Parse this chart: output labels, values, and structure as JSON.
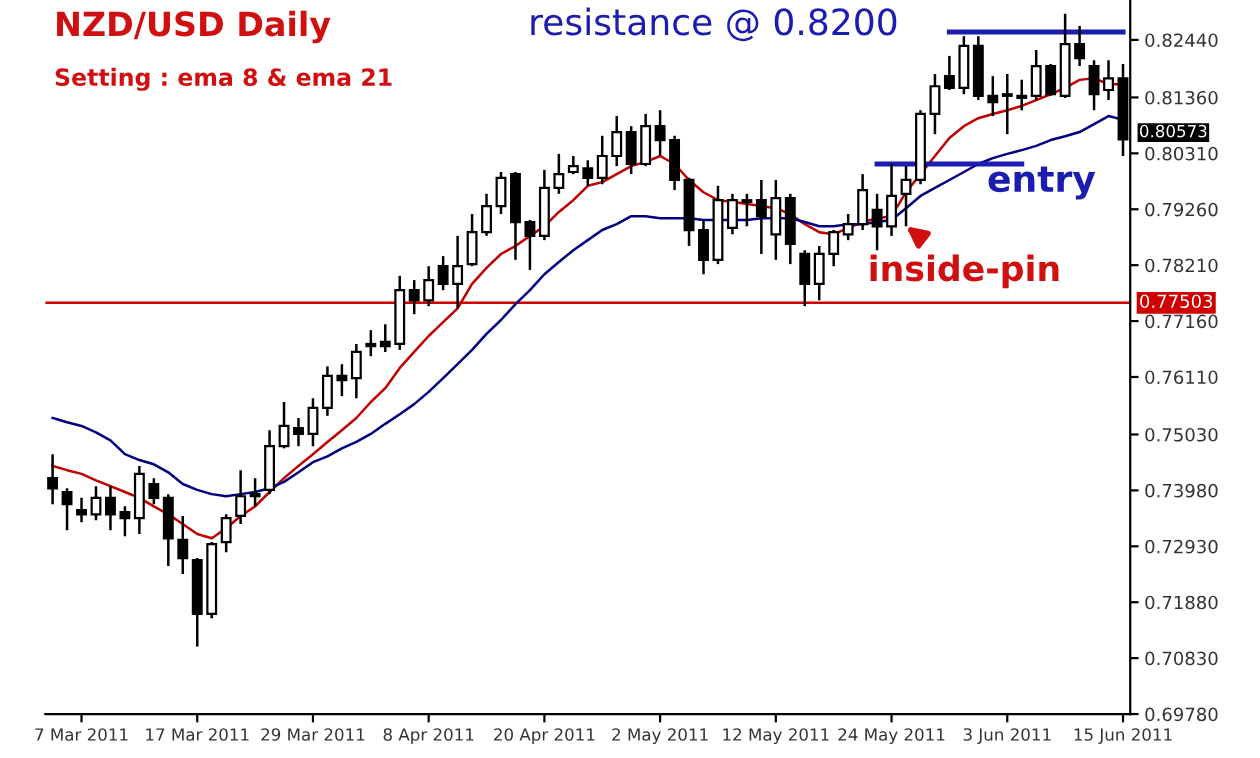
{
  "chart_data": {
    "type": "candlestick",
    "title": "NZD/USD Daily",
    "subtitle": "Setting : ema 8 & ema 21",
    "categories": [
      null,
      null,
      "7 Mar 2011",
      null,
      null,
      null,
      null,
      null,
      null,
      null,
      "17 Mar 2011",
      null,
      null,
      null,
      null,
      null,
      null,
      null,
      "29 Mar 2011",
      null,
      null,
      null,
      null,
      null,
      null,
      null,
      "8 Apr 2011",
      null,
      null,
      null,
      null,
      null,
      null,
      null,
      "20 Apr 2011",
      null,
      null,
      null,
      null,
      null,
      null,
      null,
      "2 May 2011",
      null,
      null,
      null,
      null,
      null,
      null,
      null,
      "12 May 2011",
      null,
      null,
      null,
      null,
      null,
      null,
      null,
      "24 May 2011",
      null,
      null,
      null,
      null,
      null,
      null,
      null,
      "3 Jun 2011",
      null,
      null,
      null,
      null,
      null,
      null,
      null,
      "15 Jun 2011"
    ],
    "ohlc": [
      [
        0.7421,
        0.7466,
        0.7372,
        0.7402
      ],
      [
        0.7395,
        0.7402,
        0.7323,
        0.7372
      ],
      [
        0.7361,
        0.7384,
        0.7338,
        0.7353
      ],
      [
        0.7353,
        0.7406,
        0.7342,
        0.7384
      ],
      [
        0.7384,
        0.7406,
        0.7323,
        0.7353
      ],
      [
        0.7357,
        0.7368,
        0.7312,
        0.7346
      ],
      [
        0.7346,
        0.7444,
        0.7316,
        0.7429
      ],
      [
        0.741,
        0.7421,
        0.7372,
        0.7384
      ],
      [
        0.7384,
        0.7391,
        0.7256,
        0.7308
      ],
      [
        0.7305,
        0.735,
        0.7241,
        0.7271
      ],
      [
        0.7267,
        0.7271,
        0.7105,
        0.7166
      ],
      [
        0.7166,
        0.7301,
        0.7158,
        0.7297
      ],
      [
        0.7301,
        0.7353,
        0.7282,
        0.7346
      ],
      [
        0.735,
        0.7436,
        0.7335,
        0.7387
      ],
      [
        0.7391,
        0.7421,
        0.7368,
        0.7387
      ],
      [
        0.7399,
        0.7511,
        0.7391,
        0.7481
      ],
      [
        0.7481,
        0.7564,
        0.7477,
        0.7519
      ],
      [
        0.7515,
        0.7534,
        0.7481,
        0.7504
      ],
      [
        0.7504,
        0.7571,
        0.7481,
        0.7553
      ],
      [
        0.7553,
        0.7631,
        0.7538,
        0.7613
      ],
      [
        0.7613,
        0.7635,
        0.7575,
        0.7605
      ],
      [
        0.7609,
        0.7673,
        0.7571,
        0.7658
      ],
      [
        0.7669,
        0.7699,
        0.765,
        0.7673
      ],
      [
        0.7677,
        0.771,
        0.7658,
        0.7669
      ],
      [
        0.7673,
        0.7801,
        0.7662,
        0.7774
      ],
      [
        0.7774,
        0.7793,
        0.7729,
        0.7755
      ],
      [
        0.7755,
        0.7819,
        0.7744,
        0.7793
      ],
      [
        0.7819,
        0.7838,
        0.7774,
        0.7786
      ],
      [
        0.7786,
        0.7876,
        0.774,
        0.7819
      ],
      [
        0.7823,
        0.7917,
        0.7819,
        0.7883
      ],
      [
        0.7883,
        0.7955,
        0.7876,
        0.7932
      ],
      [
        0.7932,
        0.7996,
        0.7917,
        0.7985
      ],
      [
        0.7992,
        0.7996,
        0.7831,
        0.7902
      ],
      [
        0.7902,
        0.7906,
        0.7812,
        0.7876
      ],
      [
        0.7876,
        0.8,
        0.7868,
        0.7966
      ],
      [
        0.7966,
        0.803,
        0.7955,
        0.7992
      ],
      [
        0.7996,
        0.8026,
        0.7992,
        0.8007
      ],
      [
        0.8003,
        0.8018,
        0.797,
        0.7985
      ],
      [
        0.7985,
        0.8064,
        0.7973,
        0.8026
      ],
      [
        0.8026,
        0.8101,
        0.8007,
        0.8071
      ],
      [
        0.8071,
        0.8082,
        0.7992,
        0.8011
      ],
      [
        0.8011,
        0.8105,
        0.8007,
        0.8082
      ],
      [
        0.8082,
        0.8112,
        0.8026,
        0.8056
      ],
      [
        0.8056,
        0.8064,
        0.7962,
        0.7981
      ],
      [
        0.7981,
        0.7985,
        0.7857,
        0.7887
      ],
      [
        0.7887,
        0.7906,
        0.7804,
        0.7831
      ],
      [
        0.7831,
        0.797,
        0.7823,
        0.7943
      ],
      [
        0.7891,
        0.7955,
        0.7879,
        0.7943
      ],
      [
        0.7943,
        0.7955,
        0.7894,
        0.794
      ],
      [
        0.7943,
        0.7981,
        0.7842,
        0.7913
      ],
      [
        0.7879,
        0.7981,
        0.7831,
        0.7947
      ],
      [
        0.7947,
        0.7955,
        0.7823,
        0.7861
      ],
      [
        0.7842,
        0.7849,
        0.7744,
        0.7786
      ],
      [
        0.7786,
        0.7857,
        0.7755,
        0.7842
      ],
      [
        0.7842,
        0.7887,
        0.7819,
        0.7883
      ],
      [
        0.7879,
        0.7917,
        0.7868,
        0.7898
      ],
      [
        0.7898,
        0.7992,
        0.7887,
        0.7962
      ],
      [
        0.7925,
        0.7955,
        0.7849,
        0.7894
      ],
      [
        0.7894,
        0.8011,
        0.7876,
        0.7951
      ],
      [
        0.7955,
        0.8007,
        0.7894,
        0.7981
      ],
      [
        0.7981,
        0.8112,
        0.7973,
        0.8105
      ],
      [
        0.8105,
        0.818,
        0.8067,
        0.8157
      ],
      [
        0.8176,
        0.8214,
        0.815,
        0.8154
      ],
      [
        0.8154,
        0.8251,
        0.8142,
        0.8233
      ],
      [
        0.8233,
        0.8251,
        0.8131,
        0.8139
      ],
      [
        0.8139,
        0.8176,
        0.8101,
        0.8127
      ],
      [
        0.8139,
        0.818,
        0.8067,
        0.8142
      ],
      [
        0.8139,
        0.8169,
        0.8112,
        0.8135
      ],
      [
        0.8139,
        0.8225,
        0.8131,
        0.8195
      ],
      [
        0.8195,
        0.8199,
        0.8139,
        0.8142
      ],
      [
        0.8139,
        0.8293,
        0.8135,
        0.8236
      ],
      [
        0.8236,
        0.827,
        0.8195,
        0.821
      ],
      [
        0.8195,
        0.8206,
        0.8112,
        0.8142
      ],
      [
        0.815,
        0.8206,
        0.8131,
        0.8172
      ],
      [
        0.8172,
        0.8199,
        0.8026,
        0.8057
      ]
    ],
    "series": [
      {
        "type": "line",
        "color": "#c00000",
        "values": [
          0.7444,
          0.7436,
          0.7429,
          0.7417,
          0.7406,
          0.7395,
          0.7384,
          0.7368,
          0.7353,
          0.7335,
          0.7316,
          0.7308,
          0.7327,
          0.735,
          0.7368,
          0.7395,
          0.7421,
          0.7444,
          0.7466,
          0.7489,
          0.7511,
          0.7534,
          0.7564,
          0.759,
          0.7628,
          0.7658,
          0.7688,
          0.7714,
          0.774,
          0.7786,
          0.7816,
          0.7842,
          0.7857,
          0.7876,
          0.7894,
          0.7921,
          0.7943,
          0.797,
          0.7977,
          0.7992,
          0.8007,
          0.8015,
          0.8026,
          0.8011,
          0.7981,
          0.7958,
          0.7943,
          0.794,
          0.7936,
          0.7932,
          0.7928,
          0.7917,
          0.7898,
          0.7883,
          0.7879,
          0.7891,
          0.7902,
          0.7909,
          0.7913,
          0.7958,
          0.7992,
          0.8026,
          0.806,
          0.8082,
          0.8097,
          0.8105,
          0.8112,
          0.812,
          0.8131,
          0.8142,
          0.8154,
          0.8169,
          0.8172,
          0.8161,
          0.8161
        ]
      },
      {
        "type": "line",
        "color": "#000080",
        "values": [
          0.7534,
          0.7526,
          0.7519,
          0.7507,
          0.7492,
          0.7466,
          0.7455,
          0.7447,
          0.7432,
          0.741,
          0.7399,
          0.7391,
          0.7387,
          0.7391,
          0.7395,
          0.7402,
          0.7414,
          0.7432,
          0.7451,
          0.7462,
          0.7477,
          0.7489,
          0.7504,
          0.7523,
          0.7541,
          0.756,
          0.7583,
          0.7609,
          0.7635,
          0.7662,
          0.7692,
          0.7718,
          0.7748,
          0.7774,
          0.7804,
          0.7827,
          0.7849,
          0.7868,
          0.7887,
          0.7898,
          0.7913,
          0.7913,
          0.7909,
          0.7909,
          0.7909,
          0.7906,
          0.7906,
          0.7906,
          0.7906,
          0.7909,
          0.7909,
          0.7909,
          0.7902,
          0.7894,
          0.7894,
          0.7898,
          0.7898,
          0.7902,
          0.7906,
          0.7928,
          0.7951,
          0.7966,
          0.7981,
          0.7996,
          0.8011,
          0.8022,
          0.803,
          0.8037,
          0.8045,
          0.8056,
          0.8063,
          0.8071,
          0.8086,
          0.8101,
          0.8094
        ]
      },
      {
        "type": "line",
        "color": "#1c1cb0",
        "values": [
          null,
          null,
          null,
          null,
          null,
          null,
          null,
          null,
          null,
          null,
          null,
          null,
          null,
          null,
          null,
          null,
          null,
          null,
          null,
          null,
          null,
          null,
          null,
          null,
          null,
          null,
          null,
          null,
          null,
          null,
          null,
          null,
          null,
          null,
          null,
          null,
          null,
          null,
          null,
          null,
          null,
          null,
          null,
          null,
          null,
          null,
          null,
          null,
          null,
          null,
          null,
          null,
          null,
          null,
          null,
          null,
          null,
          null,
          null,
          null,
          null,
          null,
          0.8259,
          0.8259,
          0.8259,
          0.8259,
          0.8259,
          0.8259,
          0.8259,
          0.8259,
          0.8259,
          0.8259,
          0.8259,
          0.8259,
          0.8259
        ]
      },
      {
        "type": "line",
        "color": "#1c1cb0",
        "values": [
          null,
          null,
          null,
          null,
          null,
          null,
          null,
          null,
          null,
          null,
          null,
          null,
          null,
          null,
          null,
          null,
          null,
          null,
          null,
          null,
          null,
          null,
          null,
          null,
          null,
          null,
          null,
          null,
          null,
          null,
          null,
          null,
          null,
          null,
          null,
          null,
          null,
          null,
          null,
          null,
          null,
          null,
          null,
          null,
          null,
          null,
          null,
          null,
          null,
          null,
          null,
          null,
          null,
          null,
          null,
          null,
          null,
          0.8011,
          0.8011,
          0.8011,
          0.8011,
          0.8011,
          0.8011,
          0.8011,
          0.8011,
          0.8011,
          0.8011,
          0.8011,
          null,
          null,
          null,
          null,
          null,
          null,
          null
        ]
      }
    ],
    "ylim": [
      0.6978,
      0.8319
    ],
    "yticks": [
      {
        "value": 0.8244,
        "label": "0.82440"
      },
      {
        "value": 0.8136,
        "label": "0.81360"
      },
      {
        "value": 0.8031,
        "label": "0.80310"
      },
      {
        "value": 0.7926,
        "label": "0.79260"
      },
      {
        "value": 0.7821,
        "label": "0.78210"
      },
      {
        "value": 0.7716,
        "label": "0.77160"
      },
      {
        "value": 0.7611,
        "label": "0.76110"
      },
      {
        "value": 0.7503,
        "label": "0.75030"
      },
      {
        "value": 0.7398,
        "label": "0.73980"
      },
      {
        "value": 0.7293,
        "label": "0.72930"
      },
      {
        "value": 0.7188,
        "label": "0.71880"
      },
      {
        "value": 0.7083,
        "label": "0.70830"
      },
      {
        "value": 0.6978,
        "label": "0.69780"
      }
    ],
    "ref_lines": [
      {
        "axis": "y",
        "value": 0.77503,
        "label": "0.77503",
        "color": "#d00000"
      }
    ],
    "annotations": [
      "resistance @ 0.8200",
      "entry",
      "inside-pin",
      "0.80573"
    ],
    "grid": false,
    "legend": false
  }
}
